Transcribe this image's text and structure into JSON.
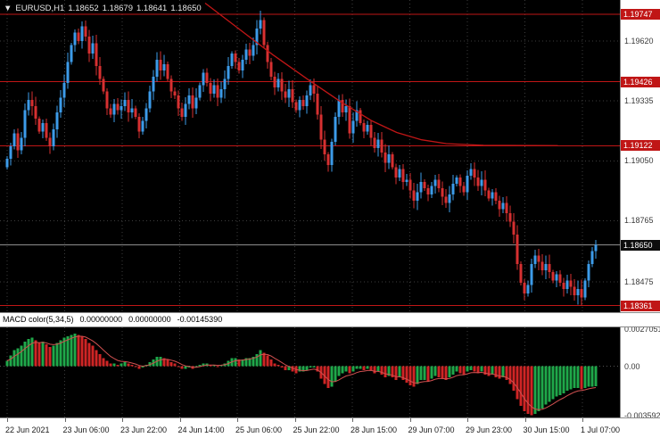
{
  "header": {
    "marker": "▼",
    "symbol": "EURUSD,H1",
    "open": "1.18652",
    "high": "1.18679",
    "low": "1.18641",
    "close": "1.18650"
  },
  "colors": {
    "background": "#000000",
    "up_candle": "#3d9be9",
    "down_candle": "#d63031",
    "grid": "#3d3d3d",
    "hline": "#c01616",
    "trendline": "#c01616",
    "bid_line": "#8c8c8c",
    "badge_red": "#c01616",
    "badge_dark": "#0d0d0d",
    "macd_up": "#1fa84a",
    "macd_down": "#cf2525",
    "signal": "#d05050"
  },
  "price_axis": {
    "labels": [
      {
        "text": "1.19620",
        "price": 1.1962
      },
      {
        "text": "1.19335",
        "price": 1.19335
      },
      {
        "text": "1.19050",
        "price": 1.1905
      },
      {
        "text": "1.18765",
        "price": 1.18765
      },
      {
        "text": "1.18475",
        "price": 1.18475
      }
    ],
    "red_badges": [
      {
        "text": "1.19747",
        "price": 1.19747
      },
      {
        "text": "1.19426",
        "price": 1.19426
      },
      {
        "text": "1.19122",
        "price": 1.19122
      },
      {
        "text": "1.18361",
        "price": 1.18361
      }
    ],
    "current_badge": {
      "text": "1.18650",
      "price": 1.1865
    }
  },
  "hlines": [
    1.19747,
    1.19426,
    1.19122,
    1.18361
  ],
  "bid_price": 1.1865,
  "trendline": [
    [
      0.331,
      1.198
    ],
    [
      0.38,
      1.1969
    ],
    [
      0.44,
      1.19555
    ],
    [
      0.5,
      1.1943
    ],
    [
      0.55,
      1.1933
    ],
    [
      0.6,
      1.1924
    ],
    [
      0.64,
      1.19185
    ],
    [
      0.68,
      1.1915
    ],
    [
      0.72,
      1.19132
    ],
    [
      0.78,
      1.19124
    ],
    [
      0.9,
      1.19122
    ]
  ],
  "time_axis": {
    "labels": [
      "22 Jun 2021",
      "23 Jun 06:00",
      "23 Jun 22:00",
      "24 Jun 14:00",
      "25 Jun 06:00",
      "25 Jun 22:00",
      "28 Jun 15:00",
      "29 Jun 07:00",
      "29 Jun 23:00",
      "30 Jun 15:00",
      "1 Jul 07:00"
    ]
  },
  "macd_panel": {
    "title": "MACD color(5,34,5)",
    "value1": "0.00000000",
    "value2": "0.00000000",
    "value3": "-0.00145390",
    "axis": [
      {
        "text": "0.0027051",
        "value": 0.0027051
      },
      {
        "text": "0.00",
        "value": 0
      },
      {
        "text": "-0.0035920",
        "value": -0.003592
      }
    ]
  },
  "chart_data": {
    "type": "candlestick",
    "symbol": "EURUSD",
    "timeframe": "H1",
    "indicator": "MACD color(5,34,5)",
    "y_range": {
      "top": 1.19815,
      "bottom": 1.1833
    },
    "macd_range": {
      "top": 0.00285,
      "bottom": -0.00375
    },
    "first_open": 1.1902,
    "closes": [
      1.1906,
      1.1912,
      1.1918,
      1.191,
      1.1916,
      1.1929,
      1.1934,
      1.1931,
      1.1925,
      1.1919,
      1.1923,
      1.1916,
      1.1912,
      1.192,
      1.1928,
      1.1935,
      1.1942,
      1.1952,
      1.196,
      1.1966,
      1.1962,
      1.1969,
      1.1964,
      1.1956,
      1.1961,
      1.195,
      1.1944,
      1.1938,
      1.193,
      1.1927,
      1.1932,
      1.1929,
      1.1931,
      1.1934,
      1.1928,
      1.193,
      1.1926,
      1.1919,
      1.1924,
      1.193,
      1.1938,
      1.1945,
      1.1953,
      1.1948,
      1.1951,
      1.1944,
      1.1938,
      1.1936,
      1.193,
      1.1926,
      1.1932,
      1.1936,
      1.193,
      1.1935,
      1.1941,
      1.1947,
      1.1942,
      1.1937,
      1.1941,
      1.1935,
      1.1939,
      1.1944,
      1.195,
      1.1956,
      1.1952,
      1.1948,
      1.1953,
      1.1958,
      1.1955,
      1.196,
      1.1968,
      1.1972,
      1.196,
      1.1952,
      1.1945,
      1.194,
      1.1944,
      1.1938,
      1.1935,
      1.1939,
      1.1933,
      1.1929,
      1.1934,
      1.1931,
      1.1936,
      1.1941,
      1.1937,
      1.1927,
      1.1915,
      1.1908,
      1.1903,
      1.1914,
      1.1926,
      1.1934,
      1.1928,
      1.1931,
      1.1918,
      1.1924,
      1.1929,
      1.1923,
      1.1919,
      1.1922,
      1.1916,
      1.1911,
      1.1915,
      1.1909,
      1.1904,
      1.1908,
      1.1902,
      1.1897,
      1.1901,
      1.1895,
      1.1896,
      1.1891,
      1.1886,
      1.189,
      1.1895,
      1.1892,
      1.1889,
      1.1893,
      1.1896,
      1.1892,
      1.1888,
      1.1885,
      1.1889,
      1.1894,
      1.1897,
      1.1893,
      1.189,
      1.1898,
      1.1901,
      1.1897,
      1.1893,
      1.1896,
      1.1891,
      1.1887,
      1.189,
      1.1886,
      1.1882,
      1.1885,
      1.188,
      1.1876,
      1.187,
      1.1856,
      1.1847,
      1.1842,
      1.1846,
      1.1856,
      1.186,
      1.1857,
      1.1853,
      1.1856,
      1.1852,
      1.1848,
      1.1851,
      1.1847,
      1.1844,
      1.1848,
      1.1845,
      1.1841,
      1.1844,
      1.184,
      1.1848,
      1.1856,
      1.1862,
      1.1865
    ],
    "spikes": [
      {
        "i": 21,
        "high": 1.19712
      },
      {
        "i": 71,
        "high": 1.1975
      },
      {
        "i": 90,
        "low": 1.18998
      },
      {
        "i": 114,
        "low": 1.18825
      },
      {
        "i": 145,
        "low": 1.18388
      },
      {
        "i": 161,
        "low": 1.18361
      }
    ],
    "macd": [
      0.0004,
      0.0008,
      0.0012,
      0.0013,
      0.0015,
      0.0018,
      0.002,
      0.0021,
      0.0019,
      0.0017,
      0.0018,
      0.0016,
      0.0014,
      0.0015,
      0.0017,
      0.0019,
      0.0021,
      0.0022,
      0.0023,
      0.0024,
      0.0023,
      0.0022,
      0.002,
      0.0017,
      0.0015,
      0.0012,
      0.0009,
      0.0006,
      0.0004,
      0.0002,
      0.0002,
      0.0001,
      0.0002,
      0.0003,
      0.0002,
      0.0001,
      0.0,
      -0.0002,
      -0.0001,
      0.0001,
      0.0003,
      0.0005,
      0.0007,
      0.0007,
      0.0006,
      0.0005,
      0.0003,
      0.0002,
      0.0,
      -0.0002,
      -0.0002,
      -0.0001,
      -0.0002,
      -0.0001,
      0.0001,
      0.0002,
      0.0002,
      0.0001,
      0.0001,
      0.0,
      0.0001,
      0.0002,
      0.0004,
      0.0006,
      0.0006,
      0.0005,
      0.0005,
      0.0006,
      0.0006,
      0.0007,
      0.0009,
      0.0012,
      0.001,
      0.0008,
      0.0005,
      0.0002,
      0.0001,
      -0.0001,
      -0.0003,
      -0.0003,
      -0.0004,
      -0.0005,
      -0.0004,
      -0.0004,
      -0.0003,
      -0.0001,
      -0.0001,
      -0.0004,
      -0.0009,
      -0.0013,
      -0.0016,
      -0.0015,
      -0.0011,
      -0.0007,
      -0.0005,
      -0.0004,
      -0.0005,
      -0.0004,
      -0.0002,
      -0.0002,
      -0.0003,
      -0.0002,
      -0.0003,
      -0.0005,
      -0.0004,
      -0.0006,
      -0.0008,
      -0.0007,
      -0.0008,
      -0.001,
      -0.0008,
      -0.001,
      -0.0012,
      -0.0014,
      -0.0015,
      -0.0013,
      -0.001,
      -0.001,
      -0.0011,
      -0.0009,
      -0.0007,
      -0.0008,
      -0.0009,
      -0.001,
      -0.0008,
      -0.0006,
      -0.0004,
      -0.0005,
      -0.0006,
      -0.0004,
      -0.0003,
      -0.0004,
      -0.0005,
      -0.0004,
      -0.0006,
      -0.0007,
      -0.0006,
      -0.0008,
      -0.0009,
      -0.0008,
      -0.001,
      -0.0013,
      -0.0018,
      -0.0024,
      -0.0029,
      -0.0033,
      -0.0035,
      -0.0036,
      -0.0035,
      -0.0033,
      -0.0031,
      -0.0028,
      -0.0026,
      -0.0024,
      -0.0022,
      -0.0021,
      -0.002,
      -0.0018,
      -0.0017,
      -0.0016,
      -0.0016,
      -0.0017,
      -0.0016,
      -0.0015,
      -0.00148,
      -0.0014539
    ]
  }
}
